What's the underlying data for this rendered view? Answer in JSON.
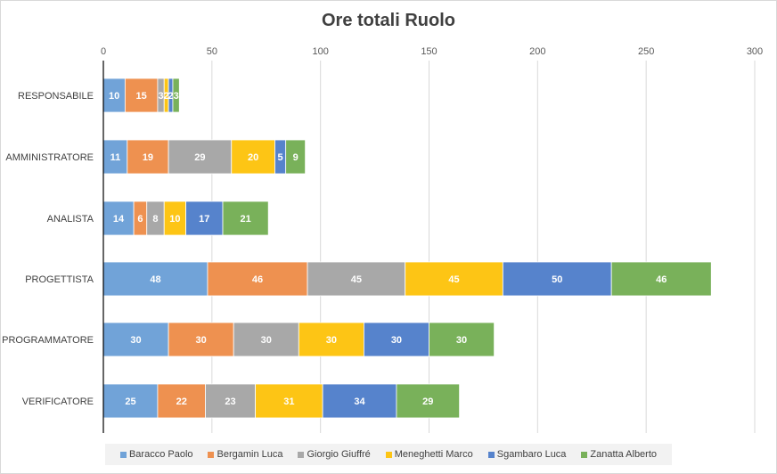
{
  "chart_data": {
    "type": "bar",
    "orientation": "horizontal",
    "stacked": true,
    "title": "Ore totali Ruolo",
    "xlabel": "",
    "ylabel": "",
    "xlim": [
      0,
      300
    ],
    "x_ticks": [
      0,
      50,
      100,
      150,
      200,
      250,
      300
    ],
    "x_tick_labels": [
      "0",
      "50",
      "100",
      "150",
      "200",
      "250",
      "300"
    ],
    "grid": true,
    "axis_position": "top",
    "legend_position": "bottom",
    "categories": [
      "RESPONSABILE",
      "AMMINISTRATORE",
      "ANALISTA",
      "PROGETTISTA",
      "PROGRAMMATORE",
      "VERIFICATORE"
    ],
    "series": [
      {
        "name": "Baracco Paolo",
        "color": "#71a3d8",
        "values": [
          10,
          11,
          14,
          48,
          30,
          25
        ],
        "labels": [
          "10",
          "11",
          "14",
          "48",
          "30",
          "25"
        ]
      },
      {
        "name": "Bergamin Luca",
        "color": "#ee9150",
        "values": [
          15,
          19,
          6,
          46,
          30,
          22
        ],
        "labels": [
          "15",
          "19",
          "6",
          "46",
          "30",
          "22"
        ]
      },
      {
        "name": "Giorgio Giuffré",
        "color": "#a8a8a8",
        "values": [
          3,
          29,
          8,
          45,
          30,
          23
        ],
        "labels": [
          "3",
          "29",
          "8",
          "45",
          "30",
          "23"
        ]
      },
      {
        "name": "Meneghetti Marco",
        "color": "#fdc515",
        "values": [
          2,
          20,
          10,
          45,
          30,
          31
        ],
        "labels": [
          "2",
          "20",
          "10",
          "45",
          "30",
          "31"
        ]
      },
      {
        "name": "Sgambaro Luca",
        "color": "#5683cc",
        "values": [
          2,
          5,
          17,
          50,
          30,
          34
        ],
        "labels": [
          "2",
          "5",
          "17",
          "50",
          "30",
          "34"
        ]
      },
      {
        "name": "Zanatta Alberto",
        "color": "#79b15a",
        "values": [
          3,
          9,
          21,
          46,
          30,
          29
        ],
        "labels": [
          "3",
          "9",
          "21",
          "46",
          "30",
          "29"
        ]
      }
    ]
  }
}
